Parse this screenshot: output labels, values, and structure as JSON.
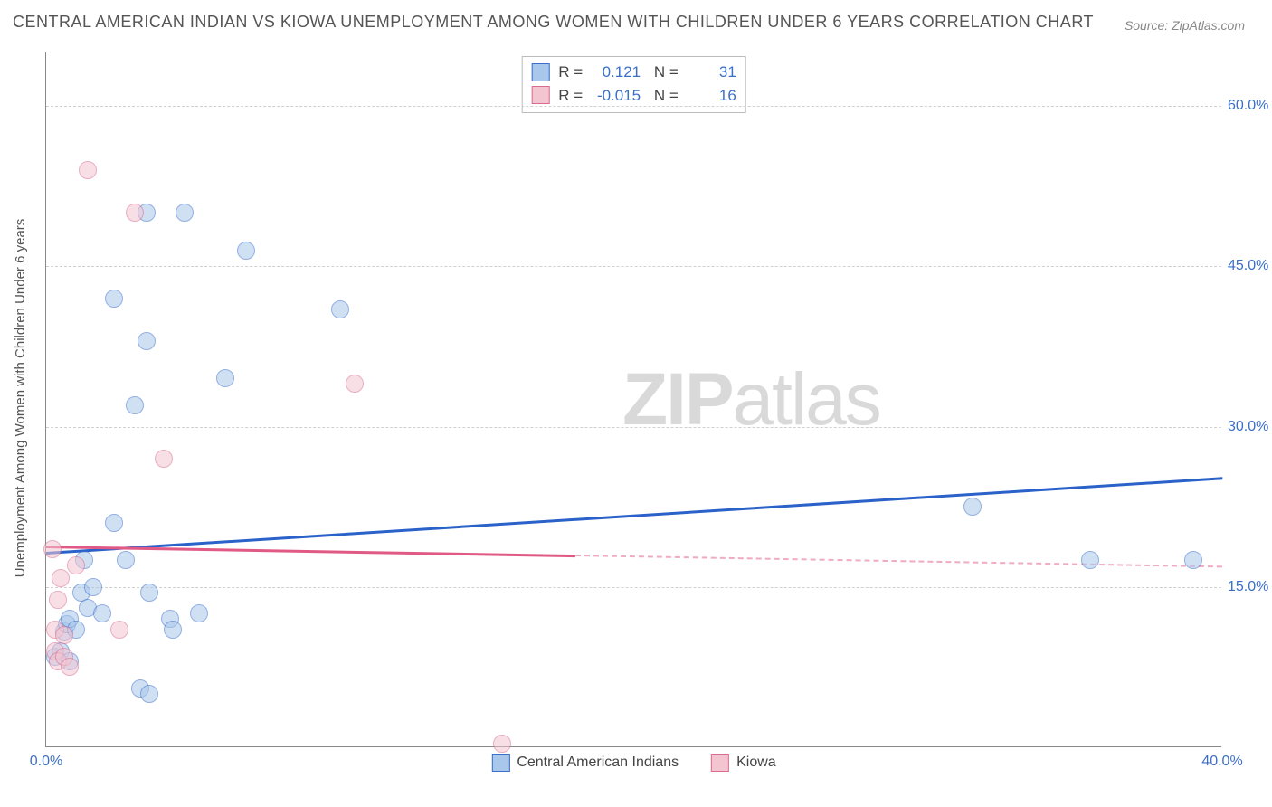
{
  "title": "CENTRAL AMERICAN INDIAN VS KIOWA UNEMPLOYMENT AMONG WOMEN WITH CHILDREN UNDER 6 YEARS CORRELATION CHART",
  "source": "Source: ZipAtlas.com",
  "ylabel": "Unemployment Among Women with Children Under 6 years",
  "watermark": {
    "bold": "ZIP",
    "rest": "atlas"
  },
  "chart": {
    "type": "scatter",
    "background_color": "#ffffff",
    "grid_color": "#d0d0d0",
    "axis_color": "#888888",
    "label_text_color": "#555555",
    "tick_text_color": "#3b6fc9",
    "xlim": [
      0,
      40
    ],
    "ylim": [
      0,
      65
    ],
    "xticks": [
      {
        "v": 0,
        "label": "0.0%"
      },
      {
        "v": 40,
        "label": "40.0%"
      }
    ],
    "yticks": [
      {
        "v": 15,
        "label": "15.0%"
      },
      {
        "v": 30,
        "label": "30.0%"
      },
      {
        "v": 45,
        "label": "45.0%"
      },
      {
        "v": 60,
        "label": "60.0%"
      }
    ],
    "grid_h": [
      15,
      30,
      45,
      60
    ],
    "marker_radius": 10,
    "marker_opacity": 0.55,
    "series": [
      {
        "id": "cai",
        "name": "Central American Indians",
        "fill_color": "#a9c7eb",
        "stroke_color": "#3b6fc9",
        "R": "0.121",
        "N": "31",
        "regression": {
          "x0": 0,
          "y0": 18.3,
          "x1": 40,
          "y1": 25.3,
          "color": "#2a62c9",
          "solid_until": 40
        },
        "points": [
          {
            "x": 0.3,
            "y": 8.5
          },
          {
            "x": 0.5,
            "y": 9.0
          },
          {
            "x": 0.6,
            "y": 10.8
          },
          {
            "x": 0.8,
            "y": 8.0
          },
          {
            "x": 0.7,
            "y": 11.5
          },
          {
            "x": 0.8,
            "y": 12.0
          },
          {
            "x": 1.0,
            "y": 11.0
          },
          {
            "x": 1.2,
            "y": 14.5
          },
          {
            "x": 1.3,
            "y": 17.5
          },
          {
            "x": 1.4,
            "y": 13.0
          },
          {
            "x": 1.6,
            "y": 15.0
          },
          {
            "x": 1.9,
            "y": 12.5
          },
          {
            "x": 2.3,
            "y": 42.0
          },
          {
            "x": 2.3,
            "y": 21.0
          },
          {
            "x": 3.0,
            "y": 32.0
          },
          {
            "x": 3.2,
            "y": 5.5
          },
          {
            "x": 3.4,
            "y": 50.0
          },
          {
            "x": 3.5,
            "y": 14.5
          },
          {
            "x": 3.4,
            "y": 38.0
          },
          {
            "x": 3.5,
            "y": 5.0
          },
          {
            "x": 4.2,
            "y": 12.0
          },
          {
            "x": 4.3,
            "y": 11.0
          },
          {
            "x": 4.7,
            "y": 50.0
          },
          {
            "x": 5.2,
            "y": 12.5
          },
          {
            "x": 6.1,
            "y": 34.5
          },
          {
            "x": 6.8,
            "y": 46.5
          },
          {
            "x": 10.0,
            "y": 41.0
          },
          {
            "x": 31.5,
            "y": 22.5
          },
          {
            "x": 35.5,
            "y": 17.5
          },
          {
            "x": 39.0,
            "y": 17.5
          },
          {
            "x": 2.7,
            "y": 17.5
          }
        ]
      },
      {
        "id": "kiowa",
        "name": "Kiowa",
        "fill_color": "#f3c5d1",
        "stroke_color": "#d96b8f",
        "R": "-0.015",
        "N": "16",
        "regression": {
          "x0": 0,
          "y0": 18.9,
          "x1": 40,
          "y1": 17.0,
          "color": "#e05a85",
          "solid_until": 18
        },
        "points": [
          {
            "x": 0.2,
            "y": 18.5
          },
          {
            "x": 0.3,
            "y": 11.0
          },
          {
            "x": 0.3,
            "y": 9.0
          },
          {
            "x": 0.4,
            "y": 8.0
          },
          {
            "x": 0.4,
            "y": 13.8
          },
          {
            "x": 0.5,
            "y": 15.8
          },
          {
            "x": 0.6,
            "y": 10.5
          },
          {
            "x": 0.6,
            "y": 8.5
          },
          {
            "x": 1.0,
            "y": 17.0
          },
          {
            "x": 1.4,
            "y": 54.0
          },
          {
            "x": 2.5,
            "y": 11.0
          },
          {
            "x": 3.0,
            "y": 50.0
          },
          {
            "x": 4.0,
            "y": 27.0
          },
          {
            "x": 10.5,
            "y": 34.0
          },
          {
            "x": 15.5,
            "y": 0.3
          },
          {
            "x": 0.8,
            "y": 7.5
          }
        ]
      }
    ]
  },
  "legend_bottom": [
    {
      "swatch_fill": "#a9c7eb",
      "swatch_stroke": "#3b6fc9",
      "label": "Central American Indians"
    },
    {
      "swatch_fill": "#f3c5d1",
      "swatch_stroke": "#d96b8f",
      "label": "Kiowa"
    }
  ]
}
